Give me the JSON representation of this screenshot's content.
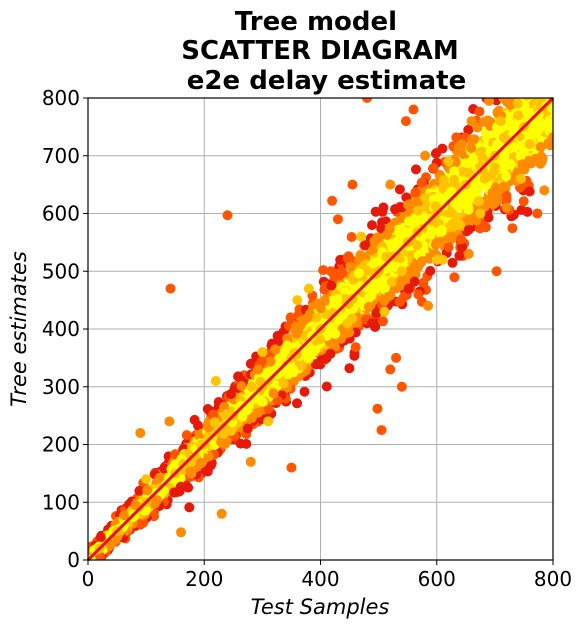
{
  "chart_data": {
    "type": "scatter",
    "title_lines": [
      "Tree model",
      "SCATTER DIAGRAM",
      " e2e delay estimate"
    ],
    "xlabel": "Test Samples",
    "ylabel": "Tree estimates",
    "xlim": [
      0,
      800
    ],
    "ylim": [
      0,
      800
    ],
    "xticks": [
      0,
      200,
      400,
      600,
      800
    ],
    "yticks": [
      0,
      100,
      200,
      300,
      400,
      500,
      600,
      700,
      800
    ],
    "grid": true,
    "legend": "none",
    "colormap": [
      "#e61a0b",
      "#ff5500",
      "#ff8c00",
      "#ffc400",
      "#ffff00"
    ],
    "reference_line": {
      "from": [
        0,
        0
      ],
      "to": [
        800,
        800
      ],
      "color": "#e8101c"
    },
    "points": [
      [
        240,
        597
      ],
      [
        142,
        470
      ],
      [
        703,
        500
      ],
      [
        498,
        262
      ],
      [
        505,
        225
      ],
      [
        160,
        48
      ],
      [
        420,
        622
      ],
      [
        455,
        650
      ],
      [
        480,
        800
      ],
      [
        547,
        760
      ],
      [
        690,
        795
      ],
      [
        710,
        760
      ],
      [
        720,
        610
      ],
      [
        745,
        660
      ],
      [
        740,
        770
      ],
      [
        773,
        600
      ],
      [
        785,
        640
      ],
      [
        600,
        520
      ],
      [
        640,
        580
      ],
      [
        620,
        690
      ],
      [
        580,
        700
      ],
      [
        560,
        780
      ],
      [
        350,
        160
      ],
      [
        230,
        80
      ],
      [
        300,
        360
      ],
      [
        360,
        450
      ],
      [
        380,
        470
      ],
      [
        310,
        240
      ],
      [
        280,
        170
      ],
      [
        140,
        240
      ],
      [
        90,
        220
      ],
      [
        100,
        140
      ],
      [
        220,
        310
      ],
      [
        520,
        330
      ],
      [
        530,
        350
      ],
      [
        540,
        300
      ],
      [
        510,
        430
      ],
      [
        470,
        560
      ],
      [
        430,
        590
      ],
      [
        660,
        760
      ],
      [
        585,
        440
      ],
      [
        610,
        520
      ],
      [
        655,
        530
      ],
      [
        675,
        600
      ],
      [
        700,
        680
      ],
      [
        760,
        720
      ],
      [
        780,
        800
      ],
      [
        520,
        650
      ],
      [
        540,
        500
      ],
      [
        600,
        600
      ],
      [
        400,
        400
      ],
      [
        200,
        200
      ],
      [
        100,
        100
      ],
      [
        300,
        300
      ],
      [
        500,
        500
      ],
      [
        700,
        700
      ],
      [
        650,
        650
      ],
      [
        550,
        550
      ],
      [
        450,
        450
      ],
      [
        350,
        350
      ],
      [
        250,
        250
      ],
      [
        150,
        150
      ],
      [
        50,
        50
      ],
      [
        20,
        20
      ],
      [
        750,
        750
      ]
    ]
  }
}
